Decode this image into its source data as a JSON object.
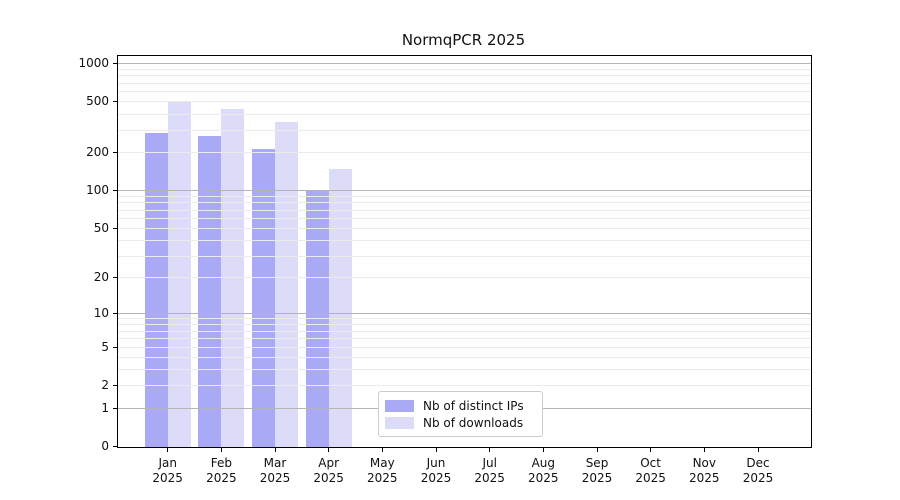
{
  "title": "NormqPCR 2025",
  "colors": {
    "background": "#ffffff",
    "frame": "#000000",
    "major_grid": "#b5b5b5",
    "minor_grid": "#ebebeb",
    "distinct_ips_bar": "#a9a9f6",
    "downloads_bar": "#dcdcf9",
    "legend_border": "#cccccc",
    "text": "#111111"
  },
  "legend": {
    "items": [
      {
        "label": "Nb of distinct IPs",
        "color": "#a9a9f6"
      },
      {
        "label": "Nb of downloads",
        "color": "#dcdcf9"
      }
    ]
  },
  "chart_data": {
    "type": "bar",
    "title": "NormqPCR 2025",
    "categories": [
      "Jan 2025",
      "Feb 2025",
      "Mar 2025",
      "Apr 2025",
      "May 2025",
      "Jun 2025",
      "Jul 2025",
      "Aug 2025",
      "Sep 2025",
      "Oct 2025",
      "Nov 2025",
      "Dec 2025"
    ],
    "x_tick_months": [
      "Jan",
      "Feb",
      "Mar",
      "Apr",
      "May",
      "Jun",
      "Jul",
      "Aug",
      "Sep",
      "Oct",
      "Nov",
      "Dec"
    ],
    "x_tick_year": "2025",
    "series": [
      {
        "name": "Nb of distinct IPs",
        "color": "#a9a9f6",
        "values": [
          285,
          270,
          215,
          101,
          null,
          null,
          null,
          null,
          null,
          null,
          null,
          null
        ]
      },
      {
        "name": "Nb of downloads",
        "color": "#dcdcf9",
        "values": [
          508,
          446,
          350,
          151,
          null,
          null,
          null,
          null,
          null,
          null,
          null,
          null
        ]
      }
    ],
    "xlabel": "",
    "ylabel": "",
    "yscale": "log1p",
    "ylim": [
      0,
      1000
    ],
    "y_ticks": [
      0,
      1,
      2,
      5,
      10,
      20,
      50,
      100,
      200,
      500,
      1000
    ],
    "major_gridlines": [
      1,
      10,
      100,
      1000
    ],
    "minor_gridline_multiples": [
      2,
      3,
      4,
      5,
      6,
      7,
      8,
      9
    ],
    "grid": "horizontal, drawn over bars",
    "legend_position": "inside bottom-center-left"
  }
}
